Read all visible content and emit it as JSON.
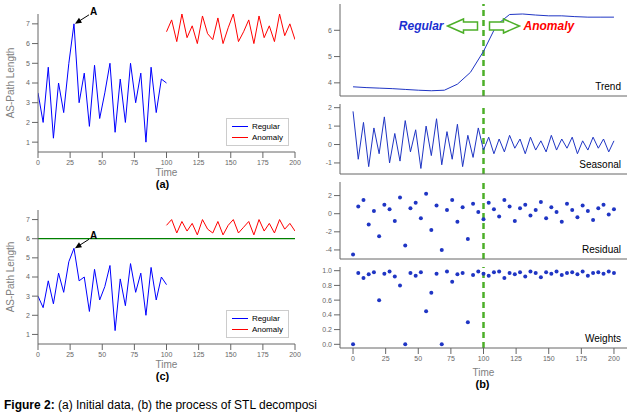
{
  "chart_data": [
    {
      "panel_label": "(a)",
      "type": "line",
      "x_label": "Time",
      "y_label": "AS-Path Length",
      "xlim": [
        0,
        200
      ],
      "xticks": [
        0,
        25,
        50,
        75,
        100,
        125,
        150,
        175,
        200
      ],
      "ylim": [
        0.5,
        7.5
      ],
      "yticks": [
        1,
        2,
        3,
        4,
        5,
        6,
        7
      ],
      "legend": "lower right",
      "series": [
        {
          "name": "Regular",
          "color": "#0000ff",
          "x": [
            0,
            4,
            8,
            12,
            16,
            20,
            24,
            28,
            32,
            36,
            40,
            44,
            48,
            52,
            56,
            60,
            64,
            68,
            72,
            76,
            80,
            84,
            88,
            92,
            96,
            100
          ],
          "values": [
            3.5,
            2.0,
            4.8,
            1.2,
            4.0,
            2.5,
            5.0,
            7.0,
            3.0,
            4.5,
            1.8,
            4.9,
            2.2,
            3.5,
            5.0,
            1.5,
            4.2,
            2.0,
            5.0,
            3.0,
            4.5,
            1.0,
            4.8,
            2.5,
            4.2,
            4.0
          ]
        },
        {
          "name": "Anomaly",
          "color": "#ff0000",
          "x": [
            100,
            104,
            108,
            112,
            116,
            120,
            124,
            128,
            132,
            136,
            140,
            144,
            148,
            152,
            156,
            160,
            164,
            168,
            172,
            176,
            180,
            184,
            188,
            192,
            196,
            200
          ],
          "values": [
            6.6,
            7.2,
            6.1,
            7.5,
            6.3,
            6.9,
            6.0,
            7.4,
            6.5,
            6.2,
            7.3,
            6.0,
            6.8,
            7.5,
            6.1,
            6.6,
            7.2,
            6.0,
            7.4,
            6.3,
            6.9,
            6.1,
            7.5,
            6.4,
            7.0,
            6.2
          ]
        }
      ],
      "annotations": [
        {
          "text": "A",
          "x": 28,
          "y": 7
        }
      ]
    },
    {
      "panel_label": "(c)",
      "type": "line",
      "x_label": "Time",
      "y_label": "AS-Path Length",
      "xlim": [
        0,
        200
      ],
      "xticks": [
        0,
        25,
        50,
        75,
        100,
        125,
        150,
        175,
        200
      ],
      "ylim": [
        0.5,
        7.5
      ],
      "yticks": [
        1,
        2,
        3,
        4,
        5,
        6,
        7
      ],
      "legend": "lower right",
      "threshold": {
        "value": 6,
        "color": "#008000"
      },
      "series": [
        {
          "name": "Regular",
          "color": "#0000ff",
          "x": [
            0,
            4,
            8,
            12,
            16,
            20,
            24,
            28,
            32,
            36,
            40,
            44,
            48,
            52,
            56,
            60,
            64,
            68,
            72,
            76,
            80,
            84,
            88,
            92,
            96,
            100
          ],
          "values": [
            3.0,
            2.4,
            3.8,
            2.6,
            4.2,
            3.2,
            4.8,
            5.5,
            3.8,
            4.0,
            2.2,
            4.4,
            2.8,
            3.5,
            4.6,
            1.2,
            3.9,
            2.5,
            4.7,
            3.2,
            4.2,
            2.0,
            4.5,
            2.8,
            4.0,
            3.6
          ]
        },
        {
          "name": "Anomaly",
          "color": "#ff0000",
          "x": [
            100,
            104,
            108,
            112,
            116,
            120,
            124,
            128,
            132,
            136,
            140,
            144,
            148,
            152,
            156,
            160,
            164,
            168,
            172,
            176,
            180,
            184,
            188,
            192,
            196,
            200
          ],
          "values": [
            6.7,
            7.0,
            6.3,
            6.9,
            6.4,
            6.8,
            6.2,
            7.0,
            6.5,
            6.3,
            6.9,
            6.2,
            6.7,
            7.0,
            6.3,
            6.6,
            6.9,
            6.2,
            7.0,
            6.4,
            6.8,
            6.3,
            7.0,
            6.5,
            6.8,
            6.4
          ]
        }
      ],
      "annotations": [
        {
          "text": "A",
          "x": 28,
          "y": 5.5
        }
      ]
    },
    {
      "panel_label": "(b)",
      "type": "stl",
      "x_label": "Time",
      "xlim": [
        -10,
        210
      ],
      "xticks": [
        0,
        25,
        50,
        75,
        100,
        125,
        150,
        175,
        200
      ],
      "split": {
        "x": 100,
        "color": "#4caf28"
      },
      "region_labels": [
        {
          "text": "Regular",
          "color": "#1a2fd0"
        },
        {
          "text": "Anomaly",
          "color": "#ff0000"
        }
      ],
      "x": [
        0,
        4,
        8,
        12,
        16,
        20,
        24,
        28,
        32,
        36,
        40,
        44,
        48,
        52,
        56,
        60,
        64,
        68,
        72,
        76,
        80,
        84,
        88,
        92,
        96,
        100,
        104,
        108,
        112,
        116,
        120,
        124,
        128,
        132,
        136,
        140,
        144,
        148,
        152,
        156,
        160,
        164,
        168,
        172,
        176,
        180,
        184,
        188,
        192,
        196,
        200
      ],
      "subplots": [
        {
          "title": "Trend",
          "type": "line",
          "color": "#1f35c4",
          "ylim": [
            3.5,
            7
          ],
          "yticks": [
            4,
            5,
            6
          ],
          "x": [
            0,
            10,
            20,
            30,
            40,
            50,
            60,
            70,
            80,
            90,
            100,
            110,
            120,
            130,
            140,
            150,
            160,
            170,
            180,
            190,
            200
          ],
          "values": [
            3.85,
            3.82,
            3.8,
            3.78,
            3.75,
            3.72,
            3.7,
            3.72,
            3.95,
            4.4,
            5.2,
            6.2,
            6.6,
            6.62,
            6.58,
            6.55,
            6.55,
            6.52,
            6.5,
            6.5,
            6.5
          ]
        },
        {
          "title": "Seasonal",
          "type": "line",
          "color": "#1f35c4",
          "ylim": [
            -1.6,
            2.2
          ],
          "yticks": [
            -1,
            0,
            1,
            2
          ],
          "values": [
            1.8,
            -0.8,
            1.2,
            -1.2,
            0.9,
            -0.5,
            1.5,
            -1.0,
            0.6,
            -0.9,
            1.3,
            -0.4,
            0.8,
            -1.3,
            1.0,
            -0.6,
            1.4,
            -1.1,
            0.7,
            -0.8,
            1.1,
            -1.2,
            0.5,
            -0.7,
            0.9,
            -0.3,
            0.4,
            -0.5,
            0.3,
            -0.4,
            0.5,
            -0.2,
            0.3,
            -0.5,
            0.4,
            -0.3,
            0.2,
            -0.4,
            0.5,
            -0.3,
            0.3,
            -0.2,
            0.4,
            -0.5,
            0.2,
            -0.3,
            0.4,
            -0.2,
            0.3,
            -0.4,
            0.2
          ]
        },
        {
          "title": "Residual",
          "type": "scatter",
          "marker": "circle",
          "color": "#1f35c4",
          "ylim": [
            -5,
            3.5
          ],
          "yticks": [
            -4,
            -2,
            0,
            2
          ],
          "values": [
            -4.5,
            0.8,
            1.5,
            -1.2,
            0.3,
            -2.5,
            1.0,
            0.5,
            -0.8,
            1.8,
            -3.5,
            0.6,
            1.2,
            -0.5,
            2.2,
            -1.8,
            0.9,
            -4.0,
            0.4,
            1.5,
            -0.9,
            0.7,
            -2.8,
            1.1,
            0.2,
            -0.6,
            1.2,
            0.5,
            -0.3,
            1.5,
            0.8,
            -0.8,
            0.6,
            1.0,
            -0.2,
            0.4,
            1.3,
            -0.5,
            0.7,
            0.2,
            -0.9,
            1.1,
            0.4,
            -0.4,
            0.9,
            0.3,
            -0.7,
            0.6,
            1.0,
            -0.1,
            0.5
          ]
        },
        {
          "title": "Weights",
          "type": "scatter",
          "marker": "circle",
          "color": "#1f35c4",
          "ylim": [
            -0.05,
            1.05
          ],
          "yticks": [
            {
              "value": 0,
              "label": "0.0"
            },
            0.2,
            0.4,
            0.6,
            0.8,
            {
              "value": 1,
              "label": "1.0"
            }
          ],
          "values": [
            0.0,
            0.97,
            0.9,
            0.95,
            0.98,
            0.6,
            0.96,
            0.99,
            0.92,
            0.8,
            0.0,
            0.97,
            0.93,
            0.98,
            0.45,
            0.7,
            0.96,
            0.0,
            0.99,
            0.85,
            0.95,
            0.97,
            0.3,
            0.94,
            0.99,
            0.96,
            0.93,
            0.98,
            0.99,
            0.9,
            0.97,
            0.95,
            0.98,
            0.92,
            0.99,
            0.97,
            0.91,
            0.98,
            0.96,
            0.99,
            0.94,
            0.97,
            0.98,
            0.95,
            0.99,
            0.93,
            0.97,
            0.98,
            0.96,
            0.99,
            0.97
          ]
        }
      ]
    }
  ],
  "caption": {
    "label": "Figure 2:",
    "text": "(a) Initial data, (b) the process of STL decomposi"
  }
}
